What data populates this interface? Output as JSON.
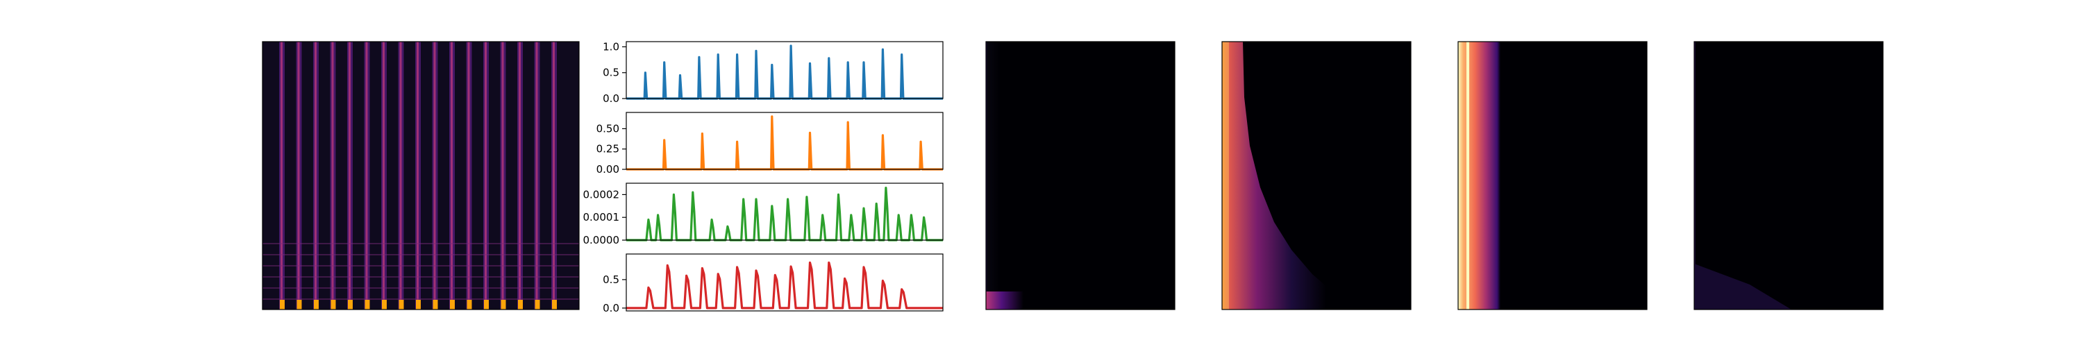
{
  "figure": {
    "colormap": "magma",
    "background": "#ffffff"
  },
  "chart_data": [
    {
      "type": "heatmap",
      "panel": "spectrogram-input",
      "pattern": "periodic-onsets",
      "onset_count": 17,
      "colormap": "magma",
      "ticks": "none"
    },
    {
      "type": "line",
      "panel": "activation-1",
      "color": "#1f77b4",
      "ylim": [
        0,
        1.1
      ],
      "yticks": [
        0.0,
        0.5,
        1.0
      ],
      "ytick_labels": [
        "0.0",
        "0.5",
        "1.0"
      ],
      "x": [
        0.06,
        0.12,
        0.17,
        0.23,
        0.29,
        0.35,
        0.41,
        0.46,
        0.52,
        0.58,
        0.64,
        0.7,
        0.75,
        0.81,
        0.87
      ],
      "values": [
        0.5,
        0.7,
        0.45,
        0.8,
        0.85,
        0.85,
        0.92,
        0.65,
        1.02,
        0.68,
        0.78,
        0.7,
        0.7,
        0.95,
        0.85
      ]
    },
    {
      "type": "line",
      "panel": "activation-2",
      "color": "#ff7f0e",
      "ylim": [
        0,
        0.7
      ],
      "yticks": [
        0.0,
        0.25,
        0.5
      ],
      "ytick_labels": [
        "0.00",
        "0.25",
        "0.50"
      ],
      "x": [
        0.12,
        0.24,
        0.35,
        0.46,
        0.58,
        0.7,
        0.81,
        0.93
      ],
      "values": [
        0.36,
        0.44,
        0.34,
        0.65,
        0.45,
        0.58,
        0.42,
        0.34
      ]
    },
    {
      "type": "line",
      "panel": "activation-3",
      "color": "#2ca02c",
      "ylim": [
        0,
        0.00025
      ],
      "yticks": [
        0.0,
        0.0001,
        0.0002
      ],
      "ytick_labels": [
        "0.0000",
        "0.0001",
        "0.0002"
      ],
      "x": [
        0.07,
        0.1,
        0.15,
        0.21,
        0.27,
        0.32,
        0.37,
        0.41,
        0.46,
        0.51,
        0.57,
        0.62,
        0.67,
        0.71,
        0.75,
        0.79,
        0.82,
        0.86,
        0.9,
        0.94
      ],
      "values": [
        9e-05,
        0.00011,
        0.0002,
        0.00021,
        9e-05,
        6e-05,
        0.00018,
        0.00018,
        0.00015,
        0.00018,
        0.00019,
        0.00011,
        0.0002,
        0.00011,
        0.00014,
        0.00016,
        0.00023,
        0.00011,
        0.00011,
        0.0001
      ]
    },
    {
      "type": "line",
      "panel": "activation-4",
      "color": "#d62728",
      "ylim": [
        -0.05,
        0.95
      ],
      "yticks": [
        0.0,
        0.5
      ],
      "ytick_labels": [
        "0.0",
        "0.5"
      ],
      "x": [
        0.07,
        0.13,
        0.19,
        0.24,
        0.29,
        0.35,
        0.41,
        0.47,
        0.52,
        0.58,
        0.64,
        0.69,
        0.75,
        0.81,
        0.87
      ],
      "values": [
        0.36,
        0.75,
        0.57,
        0.7,
        0.6,
        0.72,
        0.66,
        0.58,
        0.73,
        0.8,
        0.8,
        0.52,
        0.72,
        0.48,
        0.33
      ]
    },
    {
      "type": "heatmap",
      "panel": "decomposed-1",
      "colormap": "magma",
      "energy_profile": "narrow-left-band",
      "left_band_width": 0.06,
      "peak_intensity": 0.55,
      "ticks": "none"
    },
    {
      "type": "heatmap",
      "panel": "decomposed-2",
      "colormap": "magma",
      "energy_profile": "low-frequency-spread",
      "left_band_width": 0.08,
      "peak_intensity": 0.9,
      "ticks": "none"
    },
    {
      "type": "heatmap",
      "panel": "decomposed-3",
      "colormap": "magma",
      "energy_profile": "broad-left-band",
      "left_band_width": 0.35,
      "peak_intensity": 1.0,
      "ticks": "none"
    },
    {
      "type": "heatmap",
      "panel": "decomposed-4",
      "colormap": "magma",
      "energy_profile": "faint-left-band",
      "left_band_width": 0.05,
      "peak_intensity": 0.35,
      "ticks": "none"
    }
  ]
}
